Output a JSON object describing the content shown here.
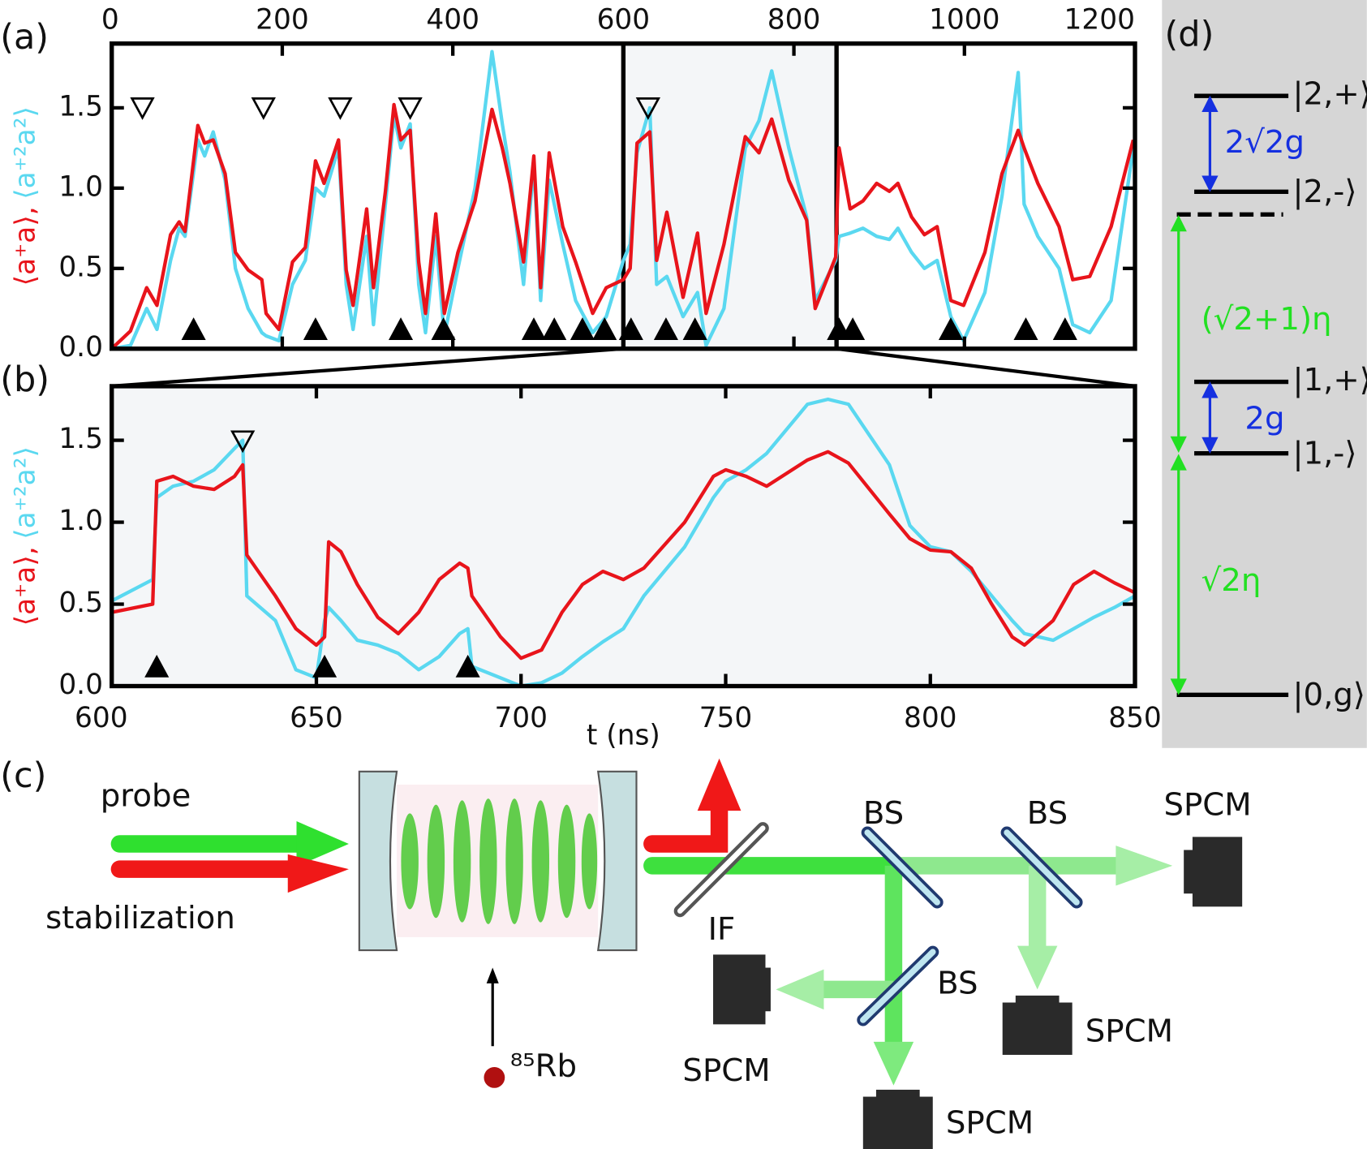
{
  "chart_data": [
    {
      "type": "line",
      "panel_label": "(a)",
      "y_label_red": "⟨a⁺a⟩,",
      "y_label_cyan": "⟨a⁺²a²⟩",
      "x_axis_position": "top",
      "x": [
        0,
        22,
        41,
        53,
        69,
        79,
        86,
        101,
        109,
        119,
        133,
        145,
        160,
        176,
        181,
        196,
        212,
        227,
        239,
        249,
        266,
        275,
        283,
        299,
        307,
        321,
        331,
        339,
        350,
        360,
        368,
        380,
        390,
        406,
        426,
        446,
        458,
        467,
        483,
        495,
        503,
        513,
        529,
        544,
        564,
        580,
        600,
        608,
        616,
        631,
        639,
        651,
        670,
        687,
        697,
        718,
        743,
        759,
        774,
        794,
        815,
        825,
        849,
        853,
        866,
        881,
        897,
        912,
        922,
        938,
        953,
        968,
        984,
        999,
        1024,
        1044,
        1063,
        1070,
        1086,
        1111,
        1127,
        1147,
        1172,
        1198
      ],
      "series": [
        {
          "color": "#5ad8f0",
          "values": [
            0,
            0.02,
            0.25,
            0.12,
            0.55,
            0.75,
            0.7,
            1.3,
            1.2,
            1.35,
            1.05,
            0.5,
            0.25,
            0.1,
            0.08,
            0.05,
            0.4,
            0.55,
            1.0,
            0.95,
            1.25,
            0.4,
            0.12,
            0.7,
            0.15,
            0.9,
            1.45,
            1.25,
            1.4,
            0.4,
            0.1,
            0.7,
            0.08,
            0.5,
            1.0,
            1.85,
            1.4,
            1.1,
            0.4,
            1.15,
            0.3,
            1.05,
            0.65,
            0.3,
            0.1,
            0.2,
            0.55,
            0.65,
            1.22,
            1.5,
            0.4,
            0.45,
            0.2,
            0.35,
            0.02,
            0.25,
            1.25,
            1.42,
            1.73,
            1.25,
            0.82,
            0.3,
            0.55,
            0.7,
            0.72,
            0.75,
            0.7,
            0.68,
            0.75,
            0.6,
            0.5,
            0.55,
            0.2,
            0.05,
            0.35,
            0.95,
            1.72,
            0.9,
            0.7,
            0.5,
            0.15,
            0.1,
            0.3,
            1.25
          ]
        },
        {
          "color": "#e8141b",
          "values": [
            0,
            0.11,
            0.38,
            0.27,
            0.71,
            0.79,
            0.73,
            1.39,
            1.28,
            1.3,
            1.09,
            0.6,
            0.49,
            0.43,
            0.22,
            0.12,
            0.54,
            0.63,
            1.17,
            1.03,
            1.3,
            0.49,
            0.27,
            0.87,
            0.38,
            0.98,
            1.52,
            1.3,
            1.36,
            0.54,
            0.22,
            0.84,
            0.22,
            0.6,
            0.92,
            1.49,
            1.25,
            1.03,
            0.54,
            1.2,
            0.38,
            1.22,
            0.76,
            0.54,
            0.22,
            0.38,
            0.43,
            0.5,
            1.28,
            1.35,
            0.55,
            0.85,
            0.32,
            0.72,
            0.22,
            0.65,
            1.32,
            1.22,
            1.43,
            1.05,
            0.8,
            0.25,
            0.57,
            1.25,
            0.87,
            0.92,
            1.03,
            0.98,
            1.03,
            0.82,
            0.71,
            0.76,
            0.3,
            0.27,
            0.6,
            1.09,
            1.36,
            1.25,
            1.03,
            0.76,
            0.43,
            0.45,
            0.76,
            1.3
          ]
        }
      ],
      "markers_filled": [
        96,
        239,
        339,
        389,
        495,
        519,
        552,
        578,
        609,
        650,
        684,
        853,
        869,
        984,
        1072,
        1118
      ],
      "markers_open": [
        36,
        178,
        268,
        350,
        629
      ],
      "xlim": [
        0,
        1200
      ],
      "xticks": [
        0,
        200,
        400,
        600,
        800,
        1000,
        1200
      ],
      "ylim": [
        0,
        1.9
      ],
      "yticks": [
        {
          "value": 0,
          "label": "0.0"
        },
        {
          "value": 0.5,
          "label": "0.5"
        },
        {
          "value": 1,
          "label": "1.0"
        },
        {
          "value": 1.5,
          "label": "1.5"
        }
      ]
    },
    {
      "type": "line",
      "panel_label": "(b)",
      "y_label_red": "⟨a⁺a⟩,",
      "y_label_cyan": "⟨a⁺²a²⟩",
      "x_label": "t (ns)",
      "x_axis_position": "bottom",
      "background": "#f4f6f8",
      "x": [
        600,
        610,
        611,
        615,
        620,
        625,
        630,
        632,
        633,
        640,
        645,
        650,
        652,
        653,
        656,
        660,
        665,
        670,
        675,
        680,
        685,
        687,
        688,
        695,
        700,
        705,
        710,
        715,
        720,
        725,
        730,
        740,
        747,
        750,
        755,
        760,
        770,
        775,
        780,
        790,
        795,
        800,
        805,
        810,
        815,
        820,
        823,
        830,
        835,
        840,
        845,
        850
      ],
      "series": [
        {
          "color": "#5ad8f0",
          "values": [
            0.52,
            0.65,
            1.15,
            1.22,
            1.25,
            1.32,
            1.45,
            1.5,
            0.55,
            0.4,
            0.1,
            0.05,
            0.4,
            0.48,
            0.4,
            0.28,
            0.25,
            0.2,
            0.1,
            0.18,
            0.32,
            0.35,
            0.12,
            0.05,
            0.0,
            0.02,
            0.08,
            0.18,
            0.27,
            0.35,
            0.55,
            0.85,
            1.15,
            1.25,
            1.32,
            1.42,
            1.72,
            1.75,
            1.72,
            1.35,
            0.98,
            0.85,
            0.82,
            0.7,
            0.55,
            0.4,
            0.32,
            0.28,
            0.35,
            0.42,
            0.48,
            0.55
          ]
        },
        {
          "color": "#e8141b",
          "values": [
            0.45,
            0.5,
            1.25,
            1.28,
            1.22,
            1.2,
            1.28,
            1.35,
            0.8,
            0.55,
            0.35,
            0.25,
            0.3,
            0.88,
            0.82,
            0.62,
            0.42,
            0.32,
            0.45,
            0.65,
            0.75,
            0.72,
            0.55,
            0.3,
            0.17,
            0.22,
            0.45,
            0.62,
            0.7,
            0.65,
            0.72,
            1.0,
            1.28,
            1.32,
            1.28,
            1.22,
            1.38,
            1.43,
            1.36,
            1.05,
            0.9,
            0.83,
            0.82,
            0.72,
            0.5,
            0.3,
            0.25,
            0.4,
            0.62,
            0.7,
            0.63,
            0.57
          ]
        }
      ],
      "markers_filled": [
        611,
        652,
        687
      ],
      "markers_open": [
        632
      ],
      "xlim": [
        600,
        850
      ],
      "xticks": [
        600,
        650,
        700,
        750,
        800,
        850
      ],
      "ylim": [
        0,
        1.83
      ],
      "yticks": [
        {
          "value": 0,
          "label": "0.0"
        },
        {
          "value": 0.5,
          "label": "0.5"
        },
        {
          "value": 1,
          "label": "1.0"
        },
        {
          "value": 1.5,
          "label": "1.5"
        }
      ]
    }
  ],
  "diagram_c": {
    "panel_label": "(c)",
    "probe": "probe",
    "stabilization": "stabilization",
    "atom": "⁸⁵Rb",
    "filter": "IF",
    "splitters": [
      "BS",
      "BS",
      "BS"
    ],
    "detectors": [
      "SPCM",
      "SPCM",
      "SPCM",
      "SPCM"
    ]
  },
  "diagram_d": {
    "panel_label": "(d)",
    "levels": [
      "|2,+⟩",
      "|2,-⟩",
      "|1,+⟩",
      "|1,-⟩",
      "|0,g⟩"
    ],
    "splitting_2": "2√2g",
    "splitting_1": "2g",
    "drive_2": "(√2+1)η",
    "drive_1": "√2η"
  }
}
